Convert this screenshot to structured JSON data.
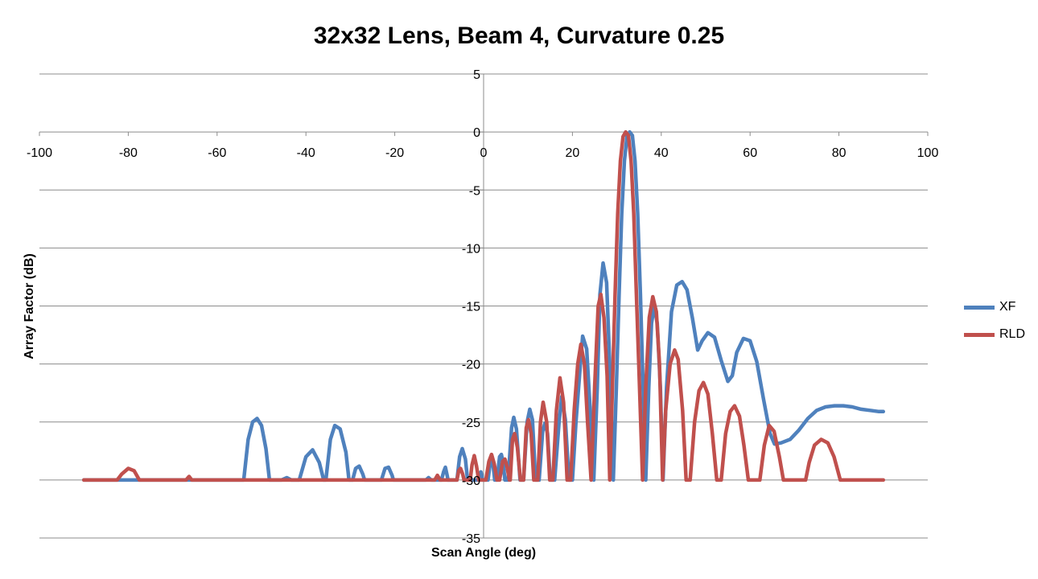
{
  "chart_data": {
    "type": "line",
    "title": "32x32 Lens, Beam 4, Curvature 0.25",
    "xlabel": "Scan Angle (deg)",
    "ylabel": "Array Factor (dB)",
    "xlim": [
      -100,
      100
    ],
    "ylim": [
      -35,
      5
    ],
    "xticks": [
      -100,
      -80,
      -60,
      -40,
      -20,
      0,
      20,
      40,
      60,
      80,
      100
    ],
    "yticks": [
      5,
      0,
      -5,
      -10,
      -15,
      -20,
      -25,
      -30,
      -35
    ],
    "grid": "horizontal",
    "legend_position": "right",
    "series": [
      {
        "name": "XF",
        "color": "#4f81bd",
        "points": [
          [
            -90,
            -30
          ],
          [
            -54,
            -30
          ],
          [
            -53,
            -26.5
          ],
          [
            -52,
            -25
          ],
          [
            -51,
            -24.7
          ],
          [
            -50,
            -25.3
          ],
          [
            -49,
            -27.3
          ],
          [
            -48.2,
            -30
          ],
          [
            -45.5,
            -30
          ],
          [
            -44.3,
            -29.8
          ],
          [
            -43.3,
            -30
          ],
          [
            -41.5,
            -30
          ],
          [
            -40,
            -28
          ],
          [
            -38.5,
            -27.4
          ],
          [
            -37,
            -28.5
          ],
          [
            -36,
            -30
          ],
          [
            -35.5,
            -30
          ],
          [
            -34.5,
            -26.5
          ],
          [
            -33.5,
            -25.3
          ],
          [
            -32.3,
            -25.6
          ],
          [
            -31,
            -27.6
          ],
          [
            -30.3,
            -30
          ],
          [
            -29.5,
            -30
          ],
          [
            -28.8,
            -29
          ],
          [
            -28,
            -28.8
          ],
          [
            -27.2,
            -29.5
          ],
          [
            -26.8,
            -30
          ],
          [
            -23,
            -30
          ],
          [
            -22.2,
            -29
          ],
          [
            -21.4,
            -28.9
          ],
          [
            -20.6,
            -29.6
          ],
          [
            -20.3,
            -30
          ],
          [
            -13,
            -30
          ],
          [
            -12.4,
            -29.8
          ],
          [
            -11.8,
            -30
          ],
          [
            -9.5,
            -30
          ],
          [
            -9,
            -29.3
          ],
          [
            -8.6,
            -28.9
          ],
          [
            -8.2,
            -29.6
          ],
          [
            -8,
            -30
          ],
          [
            -6,
            -30
          ],
          [
            -5.4,
            -28
          ],
          [
            -4.8,
            -27.3
          ],
          [
            -4.1,
            -28.2
          ],
          [
            -3.6,
            -30
          ],
          [
            -1,
            -30
          ],
          [
            -0.6,
            -29.3
          ],
          [
            -0.2,
            -30
          ],
          [
            1,
            -30
          ],
          [
            1.4,
            -28.8
          ],
          [
            1.8,
            -27.9
          ],
          [
            2.2,
            -28.9
          ],
          [
            2.5,
            -30
          ],
          [
            3,
            -30
          ],
          [
            3.6,
            -28
          ],
          [
            4,
            -27.8
          ],
          [
            4.4,
            -28.5
          ],
          [
            4.8,
            -30
          ],
          [
            5.5,
            -30
          ],
          [
            6.3,
            -25.5
          ],
          [
            6.8,
            -24.6
          ],
          [
            7.4,
            -25.6
          ],
          [
            8.2,
            -30
          ],
          [
            9,
            -30
          ],
          [
            9.8,
            -25
          ],
          [
            10.4,
            -23.9
          ],
          [
            11,
            -24.8
          ],
          [
            11.7,
            -30
          ],
          [
            12.5,
            -30
          ],
          [
            13.3,
            -25.8
          ],
          [
            13.8,
            -25.1
          ],
          [
            14.4,
            -26
          ],
          [
            15,
            -30
          ],
          [
            16,
            -30
          ],
          [
            17,
            -25
          ],
          [
            17.6,
            -22.8
          ],
          [
            18.4,
            -24.8
          ],
          [
            19.2,
            -30
          ],
          [
            20,
            -30
          ],
          [
            20.8,
            -25
          ],
          [
            21.6,
            -21
          ],
          [
            22.3,
            -17.6
          ],
          [
            23.2,
            -18.7
          ],
          [
            24,
            -24
          ],
          [
            24.8,
            -30
          ],
          [
            25.6,
            -22
          ],
          [
            26.2,
            -14
          ],
          [
            26.9,
            -11.3
          ],
          [
            27.7,
            -13
          ],
          [
            28.5,
            -21
          ],
          [
            29.2,
            -30
          ],
          [
            29.9,
            -22
          ],
          [
            30.5,
            -14
          ],
          [
            31.1,
            -7
          ],
          [
            31.7,
            -2.5
          ],
          [
            32.3,
            -0.3
          ],
          [
            32.9,
            0
          ],
          [
            33.5,
            -0.3
          ],
          [
            34.1,
            -2.5
          ],
          [
            34.7,
            -7
          ],
          [
            35.3,
            -14
          ],
          [
            35.9,
            -22
          ],
          [
            36.5,
            -30
          ],
          [
            37.2,
            -22
          ],
          [
            37.8,
            -16.5
          ],
          [
            38.4,
            -15
          ],
          [
            39.1,
            -16.5
          ],
          [
            39.8,
            -22
          ],
          [
            40.4,
            -30
          ],
          [
            41.2,
            -22
          ],
          [
            42.3,
            -15.5
          ],
          [
            43.5,
            -13.2
          ],
          [
            44.7,
            -12.9
          ],
          [
            45.8,
            -13.6
          ],
          [
            47,
            -16
          ],
          [
            48.2,
            -18.8
          ],
          [
            49.2,
            -18
          ],
          [
            50.5,
            -17.3
          ],
          [
            52,
            -17.7
          ],
          [
            53.5,
            -19.7
          ],
          [
            55,
            -21.5
          ],
          [
            56,
            -21
          ],
          [
            57,
            -19
          ],
          [
            58.5,
            -17.8
          ],
          [
            60,
            -18
          ],
          [
            61.5,
            -19.8
          ],
          [
            63,
            -23
          ],
          [
            64.5,
            -26
          ],
          [
            65.5,
            -26.9
          ],
          [
            67,
            -26.8
          ],
          [
            69,
            -26.5
          ],
          [
            71,
            -25.7
          ],
          [
            73,
            -24.7
          ],
          [
            75,
            -24
          ],
          [
            77,
            -23.7
          ],
          [
            79,
            -23.6
          ],
          [
            81,
            -23.6
          ],
          [
            83,
            -23.7
          ],
          [
            85,
            -23.9
          ],
          [
            87,
            -24
          ],
          [
            89,
            -24.1
          ],
          [
            90,
            -24.1
          ]
        ]
      },
      {
        "name": "RLD",
        "color": "#c0504d",
        "points": [
          [
            -90,
            -30
          ],
          [
            -82.5,
            -30
          ],
          [
            -81.5,
            -29.5
          ],
          [
            -80,
            -29
          ],
          [
            -78.7,
            -29.2
          ],
          [
            -77.5,
            -30
          ],
          [
            -67,
            -30
          ],
          [
            -66.3,
            -29.7
          ],
          [
            -65.7,
            -30
          ],
          [
            -11,
            -30
          ],
          [
            -10.4,
            -29.6
          ],
          [
            -9.8,
            -30
          ],
          [
            -6,
            -30
          ],
          [
            -5.6,
            -29.2
          ],
          [
            -5.2,
            -29
          ],
          [
            -4.7,
            -29.5
          ],
          [
            -4.4,
            -30
          ],
          [
            -3,
            -30
          ],
          [
            -2.6,
            -28.7
          ],
          [
            -2.1,
            -27.9
          ],
          [
            -1.6,
            -28.8
          ],
          [
            -1.1,
            -30
          ],
          [
            0.5,
            -30
          ],
          [
            1.2,
            -28.4
          ],
          [
            1.8,
            -27.8
          ],
          [
            2.4,
            -28.6
          ],
          [
            3,
            -30
          ],
          [
            3.6,
            -30
          ],
          [
            4.3,
            -28.4
          ],
          [
            4.8,
            -28.2
          ],
          [
            5.3,
            -28.9
          ],
          [
            5.8,
            -30
          ],
          [
            6,
            -30
          ],
          [
            6.5,
            -26.5
          ],
          [
            7,
            -26
          ],
          [
            7.6,
            -27.2
          ],
          [
            8.3,
            -30
          ],
          [
            9,
            -30
          ],
          [
            9.6,
            -25.5
          ],
          [
            10.1,
            -24.8
          ],
          [
            10.7,
            -26
          ],
          [
            11.3,
            -30
          ],
          [
            12.2,
            -30
          ],
          [
            12.8,
            -25
          ],
          [
            13.4,
            -23.3
          ],
          [
            14.2,
            -25
          ],
          [
            14.9,
            -30
          ],
          [
            15.6,
            -30
          ],
          [
            16.4,
            -24
          ],
          [
            17.2,
            -21.2
          ],
          [
            18,
            -23.3
          ],
          [
            18.8,
            -30
          ],
          [
            19.6,
            -30
          ],
          [
            20.4,
            -24
          ],
          [
            21.2,
            -20
          ],
          [
            21.9,
            -18.3
          ],
          [
            22.7,
            -20
          ],
          [
            23.4,
            -25
          ],
          [
            24.2,
            -30
          ],
          [
            25,
            -22
          ],
          [
            25.8,
            -15
          ],
          [
            26.4,
            -14
          ],
          [
            27.1,
            -16
          ],
          [
            27.8,
            -21
          ],
          [
            28.4,
            -30
          ],
          [
            29,
            -22
          ],
          [
            29.6,
            -14
          ],
          [
            30.2,
            -7
          ],
          [
            30.8,
            -2.5
          ],
          [
            31.4,
            -0.4
          ],
          [
            32,
            0
          ],
          [
            32.6,
            -0.3
          ],
          [
            33.2,
            -2.5
          ],
          [
            33.8,
            -7
          ],
          [
            34.4,
            -14
          ],
          [
            35.1,
            -22
          ],
          [
            35.8,
            -30
          ],
          [
            36.5,
            -22
          ],
          [
            37.3,
            -16
          ],
          [
            38.1,
            -14.2
          ],
          [
            38.9,
            -15.5
          ],
          [
            39.6,
            -20
          ],
          [
            40.3,
            -30
          ],
          [
            41,
            -24
          ],
          [
            42,
            -20
          ],
          [
            43,
            -18.8
          ],
          [
            43.8,
            -19.6
          ],
          [
            44.8,
            -24
          ],
          [
            45.6,
            -30
          ],
          [
            46.5,
            -30
          ],
          [
            47.5,
            -25
          ],
          [
            48.5,
            -22.3
          ],
          [
            49.5,
            -21.6
          ],
          [
            50.5,
            -22.6
          ],
          [
            51.5,
            -26
          ],
          [
            52.5,
            -30
          ],
          [
            53.5,
            -30
          ],
          [
            54.5,
            -26
          ],
          [
            55.5,
            -24.1
          ],
          [
            56.5,
            -23.6
          ],
          [
            57.6,
            -24.5
          ],
          [
            58.6,
            -27
          ],
          [
            59.6,
            -30
          ],
          [
            62.2,
            -30
          ],
          [
            63.2,
            -27
          ],
          [
            64.3,
            -25.3
          ],
          [
            65.4,
            -25.8
          ],
          [
            66.6,
            -28
          ],
          [
            67.5,
            -30
          ],
          [
            72.5,
            -30
          ],
          [
            73.3,
            -28.5
          ],
          [
            74.5,
            -27
          ],
          [
            76,
            -26.5
          ],
          [
            77.5,
            -26.8
          ],
          [
            78.9,
            -28
          ],
          [
            80.3,
            -30
          ],
          [
            90,
            -30
          ]
        ]
      }
    ]
  }
}
